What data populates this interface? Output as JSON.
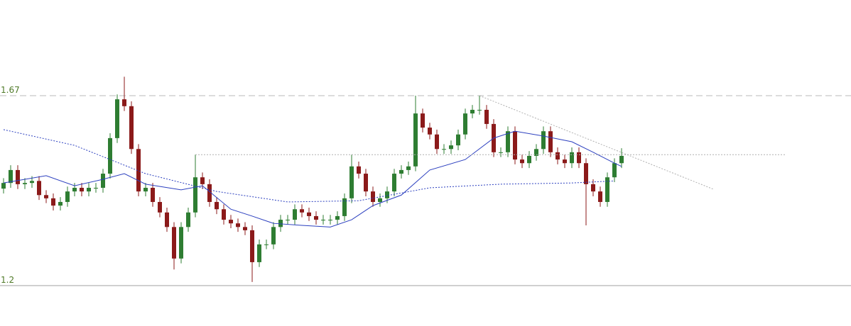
{
  "chart_data": {
    "type": "candlestick",
    "ylim": [
      1.2,
      1.67
    ],
    "yticks": [
      1.67,
      1.2
    ],
    "up_color": "#2e7d32",
    "down_color": "#8b1a1a",
    "open": [
      1.44,
      1.454,
      1.486,
      1.451,
      1.454,
      1.459,
      1.424,
      1.416,
      1.398,
      1.407,
      1.433,
      1.442,
      1.433,
      1.442,
      1.442,
      1.477,
      1.565,
      1.661,
      1.644,
      1.538,
      1.433,
      1.442,
      1.407,
      1.381,
      1.345,
      1.267,
      1.345,
      1.381,
      1.468,
      1.451,
      1.407,
      1.389,
      1.363,
      1.354,
      1.345,
      1.337,
      1.258,
      1.302,
      1.302,
      1.345,
      1.363,
      1.363,
      1.389,
      1.381,
      1.372,
      1.363,
      1.363,
      1.363,
      1.372,
      1.416,
      1.495,
      1.477,
      1.433,
      1.407,
      1.416,
      1.433,
      1.477,
      1.486,
      1.495,
      1.626,
      1.591,
      1.574,
      1.538,
      1.538,
      1.547,
      1.574,
      1.626,
      1.635,
      1.635,
      1.6,
      1.53,
      1.53,
      1.582,
      1.512,
      1.503,
      1.521,
      1.538,
      1.582,
      1.53,
      1.512,
      1.503,
      1.53,
      1.503,
      1.451,
      1.433,
      1.407,
      1.468,
      1.503
    ],
    "high": [
      1.466,
      1.498,
      1.498,
      1.466,
      1.471,
      1.471,
      1.436,
      1.428,
      1.419,
      1.445,
      1.454,
      1.454,
      1.454,
      1.454,
      1.489,
      1.577,
      1.673,
      1.717,
      1.656,
      1.55,
      1.454,
      1.454,
      1.419,
      1.393,
      1.357,
      1.357,
      1.393,
      1.524,
      1.48,
      1.463,
      1.419,
      1.401,
      1.375,
      1.366,
      1.357,
      1.349,
      1.314,
      1.314,
      1.357,
      1.375,
      1.375,
      1.401,
      1.401,
      1.393,
      1.384,
      1.375,
      1.375,
      1.384,
      1.428,
      1.524,
      1.507,
      1.489,
      1.445,
      1.428,
      1.445,
      1.489,
      1.498,
      1.507,
      1.67,
      1.638,
      1.603,
      1.586,
      1.55,
      1.559,
      1.586,
      1.638,
      1.647,
      1.67,
      1.647,
      1.612,
      1.542,
      1.594,
      1.594,
      1.524,
      1.533,
      1.55,
      1.594,
      1.594,
      1.542,
      1.524,
      1.542,
      1.542,
      1.515,
      1.463,
      1.445,
      1.48,
      1.515,
      1.54
    ],
    "low": [
      1.428,
      1.442,
      1.439,
      1.439,
      1.442,
      1.412,
      1.404,
      1.386,
      1.386,
      1.395,
      1.421,
      1.421,
      1.421,
      1.43,
      1.43,
      1.465,
      1.553,
      1.632,
      1.526,
      1.421,
      1.421,
      1.395,
      1.369,
      1.333,
      1.24,
      1.255,
      1.333,
      1.369,
      1.439,
      1.395,
      1.377,
      1.351,
      1.342,
      1.333,
      1.325,
      1.209,
      1.246,
      1.29,
      1.29,
      1.333,
      1.351,
      1.351,
      1.369,
      1.36,
      1.351,
      1.351,
      1.351,
      1.351,
      1.36,
      1.404,
      1.465,
      1.421,
      1.395,
      1.395,
      1.404,
      1.421,
      1.465,
      1.474,
      1.483,
      1.579,
      1.562,
      1.526,
      1.526,
      1.526,
      1.535,
      1.562,
      1.614,
      1.623,
      1.588,
      1.518,
      1.518,
      1.518,
      1.5,
      1.491,
      1.491,
      1.509,
      1.526,
      1.518,
      1.5,
      1.491,
      1.491,
      1.491,
      1.349,
      1.421,
      1.395,
      1.395,
      1.456,
      1.491
    ],
    "close": [
      1.454,
      1.486,
      1.451,
      1.454,
      1.459,
      1.424,
      1.416,
      1.398,
      1.407,
      1.433,
      1.442,
      1.433,
      1.442,
      1.442,
      1.477,
      1.565,
      1.661,
      1.644,
      1.538,
      1.433,
      1.442,
      1.407,
      1.381,
      1.345,
      1.267,
      1.345,
      1.381,
      1.468,
      1.451,
      1.407,
      1.389,
      1.363,
      1.354,
      1.345,
      1.337,
      1.258,
      1.302,
      1.302,
      1.345,
      1.363,
      1.363,
      1.389,
      1.381,
      1.372,
      1.363,
      1.363,
      1.363,
      1.372,
      1.416,
      1.495,
      1.477,
      1.433,
      1.407,
      1.416,
      1.433,
      1.477,
      1.486,
      1.495,
      1.626,
      1.591,
      1.574,
      1.538,
      1.538,
      1.547,
      1.574,
      1.626,
      1.635,
      1.635,
      1.6,
      1.53,
      1.53,
      1.582,
      1.512,
      1.503,
      1.521,
      1.538,
      1.582,
      1.53,
      1.512,
      1.503,
      1.53,
      1.503,
      1.451,
      1.433,
      1.407,
      1.468,
      1.503,
      1.521
    ],
    "overlays": [
      {
        "style": "solid",
        "color": "#2b3fbf",
        "x": [
          0,
          6,
          10,
          14,
          17,
          20,
          25,
          28,
          32,
          35,
          38,
          42,
          46,
          49,
          52,
          56,
          60,
          65,
          69,
          72,
          76,
          80,
          83,
          86,
          87
        ],
        "values": [
          1.454,
          1.472,
          1.447,
          1.463,
          1.477,
          1.451,
          1.437,
          1.447,
          1.389,
          1.372,
          1.354,
          1.349,
          1.345,
          1.363,
          1.398,
          1.424,
          1.486,
          1.512,
          1.565,
          1.582,
          1.57,
          1.556,
          1.53,
          1.503,
          1.495
        ]
      },
      {
        "style": "dotted",
        "color": "#2b3fbf",
        "x": [
          0,
          10,
          20,
          30,
          40,
          50,
          60,
          70,
          80,
          86
        ],
        "values": [
          1.586,
          1.547,
          1.477,
          1.433,
          1.407,
          1.41,
          1.442,
          1.451,
          1.454,
          1.459
        ]
      },
      {
        "style": "dotted",
        "color": "#b0b0b0",
        "x": [
          27,
          110
        ],
        "values": [
          1.524,
          1.524
        ]
      },
      {
        "style": "dotted",
        "color": "#b0b0b0",
        "x": [
          67,
          100
        ],
        "values": [
          1.67,
          1.438
        ]
      }
    ]
  }
}
